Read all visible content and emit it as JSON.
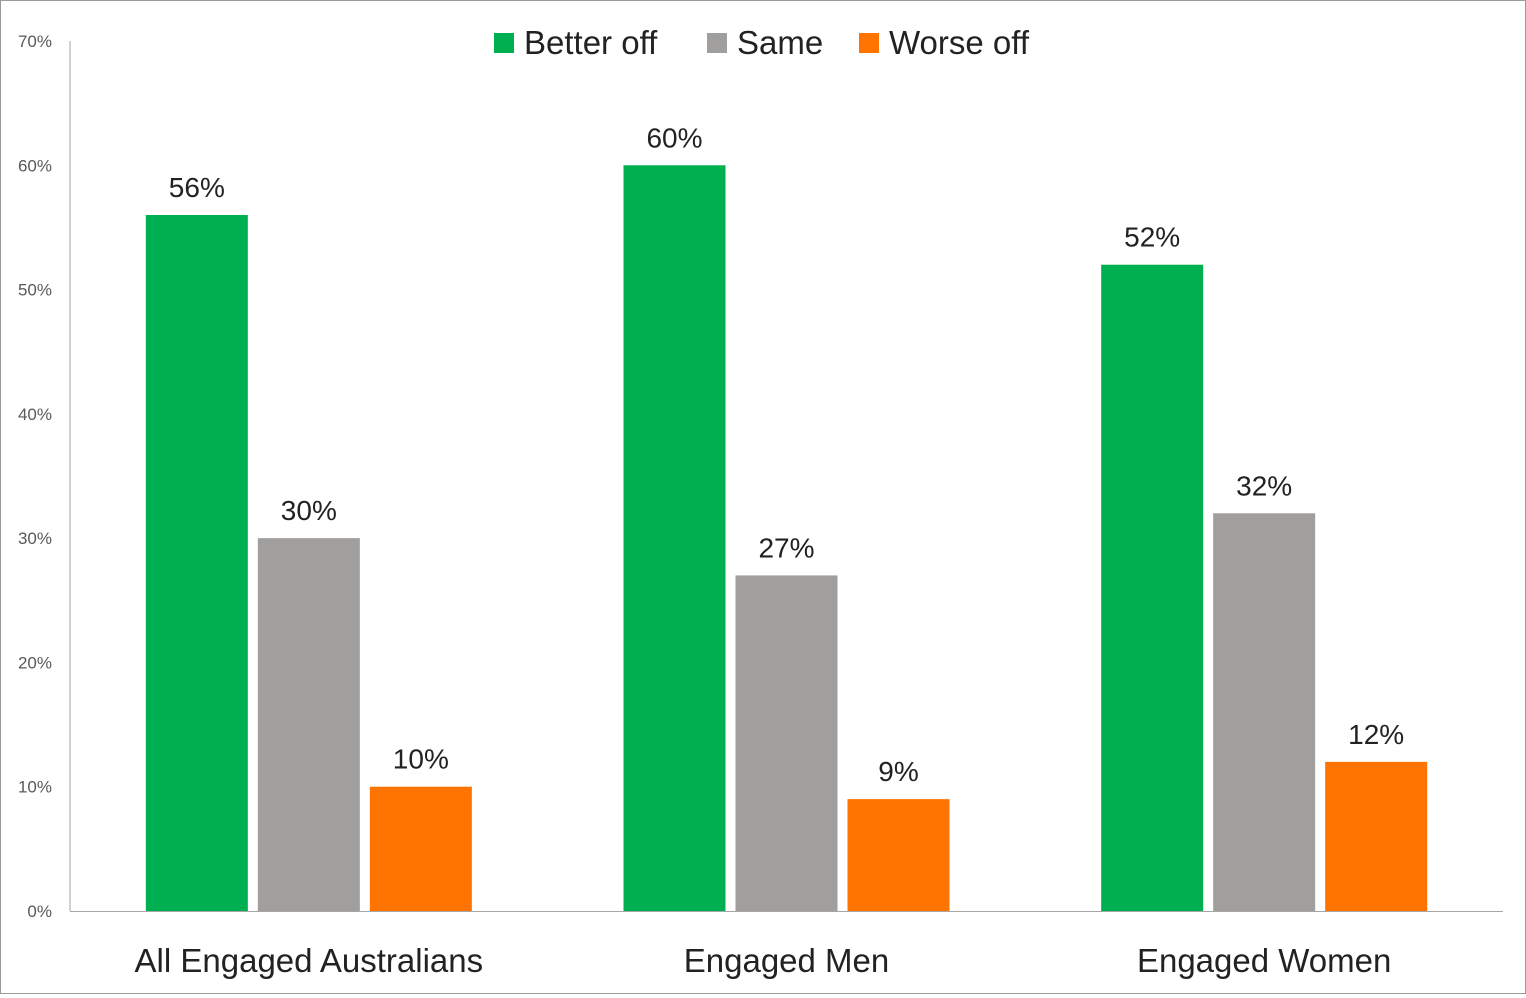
{
  "chart_data": {
    "type": "bar",
    "title": "",
    "xlabel": "",
    "ylabel": "",
    "categories": [
      "All Engaged Australians",
      "Engaged Men",
      "Engaged Women"
    ],
    "series": [
      {
        "name": "Better off",
        "color": "#00b050",
        "values": [
          56,
          60,
          52
        ],
        "labels": [
          "56%",
          "60%",
          "52%"
        ]
      },
      {
        "name": "Same",
        "color": "#a09f9d",
        "values": [
          30,
          27,
          32
        ],
        "labels": [
          "30%",
          "27%",
          "32%"
        ]
      },
      {
        "name": "Worse off",
        "color": "#ff7300",
        "values": [
          10,
          9,
          12
        ],
        "labels": [
          "10%",
          "9%",
          "12%"
        ]
      }
    ],
    "ylim": [
      0,
      70
    ],
    "yticks": [
      0,
      10,
      20,
      30,
      40,
      50,
      60,
      70
    ],
    "ytick_labels": [
      "0%",
      "10%",
      "20%",
      "30%",
      "40%",
      "50%",
      "60%",
      "70%"
    ],
    "grid": false,
    "legend_position": "top-center",
    "axis_color": "#a6a6a6"
  }
}
